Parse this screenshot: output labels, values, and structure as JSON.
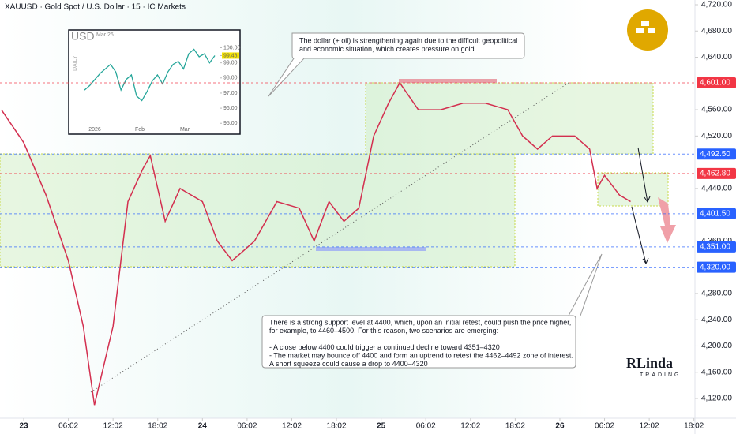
{
  "chart_data": {
    "type": "line",
    "title": "XAUUSD · Gold Spot / U.S. Dollar · 15 · IC Markets",
    "x": [
      -3,
      0,
      3,
      6,
      8,
      9.5,
      12,
      14,
      16,
      17,
      19,
      21,
      24,
      26,
      28,
      31,
      34,
      37,
      39,
      41,
      43,
      45,
      47,
      49,
      50.5,
      53,
      56,
      59,
      62,
      65,
      67,
      69,
      71,
      74,
      76,
      77,
      78,
      80,
      81.5
    ],
    "series": [
      {
        "name": "XAUUSD",
        "color": "#d32f4f",
        "values": [
          4560,
          4510,
          4430,
          4330,
          4230,
          4110,
          4230,
          4420,
          4470,
          4490,
          4390,
          4440,
          4420,
          4360,
          4330,
          4360,
          4420,
          4410,
          4360,
          4420,
          4390,
          4410,
          4520,
          4570,
          4601,
          4560,
          4560,
          4570,
          4570,
          4560,
          4520,
          4500,
          4520,
          4520,
          4500,
          4440,
          4460,
          4430,
          4420
        ]
      }
    ],
    "xlim": [
      -3.2,
      90
    ],
    "xticks": [
      {
        "value": 0,
        "label": "23"
      },
      {
        "value": 6,
        "label": "06:02"
      },
      {
        "value": 12,
        "label": "12:02"
      },
      {
        "value": 18,
        "label": "18:02"
      },
      {
        "value": 24,
        "label": "24"
      },
      {
        "value": 30,
        "label": "06:02"
      },
      {
        "value": 36,
        "label": "12:02"
      },
      {
        "value": 42,
        "label": "18:02"
      },
      {
        "value": 48,
        "label": "25"
      },
      {
        "value": 54,
        "label": "06:02"
      },
      {
        "value": 60,
        "label": "12:02"
      },
      {
        "value": 66,
        "label": "18:02"
      },
      {
        "value": 72,
        "label": "26"
      },
      {
        "value": 78,
        "label": "06:02"
      },
      {
        "value": 84,
        "label": "12:02"
      },
      {
        "value": 90,
        "label": "18:02"
      }
    ],
    "ylim": [
      4120,
      4720
    ],
    "yticks": [
      {
        "value": 4720,
        "label": "4,720.00"
      },
      {
        "value": 4680,
        "label": "4,680.00"
      },
      {
        "value": 4640,
        "label": "4,640.00"
      },
      {
        "value": 4560,
        "label": "4,560.00"
      },
      {
        "value": 4520,
        "label": "4,520.00"
      },
      {
        "value": 4440,
        "label": "4,440.00"
      },
      {
        "value": 4360,
        "label": "4,360.00"
      },
      {
        "value": 4280,
        "label": "4,280.00"
      },
      {
        "value": 4240,
        "label": "4,240.00"
      },
      {
        "value": 4200,
        "label": "4,200.00"
      },
      {
        "value": 4160,
        "label": "4,160.00"
      },
      {
        "value": 4120,
        "label": "4,120.00"
      }
    ],
    "levels": [
      {
        "value": 4601,
        "label": "4,601.00",
        "color": "#f23645"
      },
      {
        "value": 4492.5,
        "label": "4,492.50",
        "color": "#2962ff"
      },
      {
        "value": 4462.8,
        "label": "4,462.80",
        "color": "#f23645"
      },
      {
        "value": 4401.5,
        "label": "4,401.50",
        "color": "#2962ff"
      },
      {
        "value": 4351,
        "label": "4,351.00",
        "color": "#2962ff"
      },
      {
        "value": 4320,
        "label": "4,320.00",
        "color": "#2962ff"
      }
    ],
    "annotations": [
      [
        "The dollar (+ oil) is strengthening again due to the difficult geopolitical",
        "and economic situation, which creates pressure on gold"
      ],
      [
        "There is a strong support level at 4400, which, upon an initial retest, could push the price higher,",
        "for example, to 4460–4500. For this reason, two scenarios are emerging:",
        "",
        "- A close below 4400 could trigger a continued decline toward 4351–4320",
        "- The market may bounce off 4400 and form an uptrend to retest the 4462–4492 zone of interest.",
        "   A short squeeze could cause a drop to 4400–4320"
      ]
    ],
    "logo": [
      "RLinda",
      "TRADING"
    ],
    "inset": {
      "title": "USD",
      "date": "Mar 26",
      "side": "DAILY",
      "color": "#26a69a",
      "values": [
        97.2,
        97.5,
        97.9,
        98.3,
        98.6,
        98.9,
        98.4,
        97.2,
        97.9,
        98.2,
        96.8,
        96.5,
        97.1,
        97.8,
        98.2,
        97.6,
        98.4,
        98.9,
        99.1,
        98.6,
        99.6,
        99.9,
        99.4,
        99.6,
        99.0,
        99.48
      ],
      "ylim": [
        94.7,
        100.6
      ],
      "yticks": [
        {
          "value": 100,
          "label": "100.00"
        },
        {
          "value": 99.48,
          "label": "99.48"
        },
        {
          "value": 99,
          "label": "99.00"
        },
        {
          "value": 98,
          "label": "98.00"
        },
        {
          "value": 97,
          "label": "97.00"
        },
        {
          "value": 96,
          "label": "96.00"
        },
        {
          "value": 95,
          "label": "95.00"
        }
      ],
      "xticks": [
        "2026",
        "Feb",
        "Mar"
      ]
    }
  }
}
